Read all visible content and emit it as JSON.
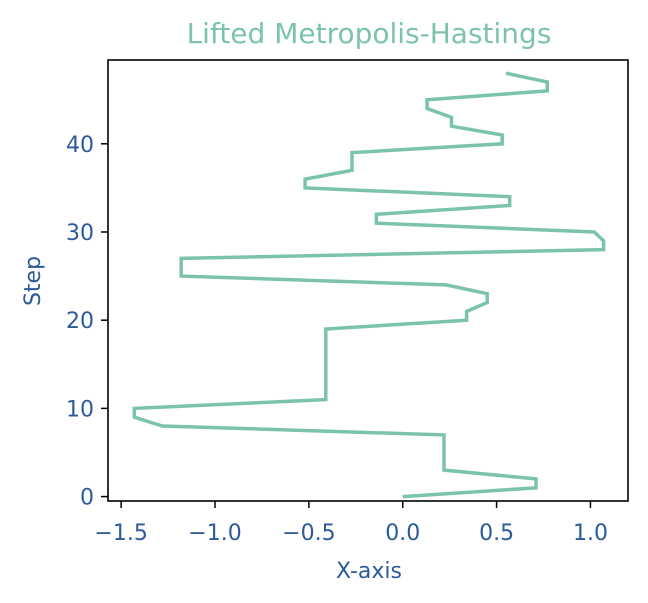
{
  "colors": {
    "series": "#7cc4a8",
    "text": "#2d5a99",
    "axes": "#000000",
    "background": "#ffffff"
  },
  "chart_data": {
    "type": "line",
    "title": "Lifted Metropolis-Hastings",
    "xlabel": "X-axis",
    "ylabel": "Step",
    "xlim": [
      -1.57,
      1.2
    ],
    "ylim": [
      -0.5,
      49.5
    ],
    "grid": false,
    "legend": "none",
    "x_ticks": [
      -1.5,
      -1.0,
      -0.5,
      0.0,
      0.5,
      1.0
    ],
    "x_tick_labels": [
      "−1.5",
      "−1.0",
      "−0.5",
      "0.0",
      "0.5",
      "1.0"
    ],
    "y_ticks": [
      0,
      10,
      20,
      30,
      40
    ],
    "y_tick_labels": [
      "0",
      "10",
      "20",
      "30",
      "40"
    ],
    "series": [
      {
        "points": [
          [
            0.0,
            0
          ],
          [
            0.71,
            1
          ],
          [
            0.71,
            2
          ],
          [
            0.22,
            3
          ],
          [
            0.22,
            4
          ],
          [
            0.22,
            5
          ],
          [
            0.22,
            6
          ],
          [
            0.22,
            7
          ],
          [
            -1.28,
            8
          ],
          [
            -1.43,
            9
          ],
          [
            -1.43,
            10
          ],
          [
            -0.41,
            11
          ],
          [
            -0.41,
            12
          ],
          [
            -0.41,
            13
          ],
          [
            -0.41,
            14
          ],
          [
            -0.41,
            15
          ],
          [
            -0.41,
            16
          ],
          [
            -0.41,
            17
          ],
          [
            -0.41,
            18
          ],
          [
            -0.41,
            19
          ],
          [
            0.34,
            20
          ],
          [
            0.34,
            21
          ],
          [
            0.45,
            22
          ],
          [
            0.45,
            23
          ],
          [
            0.23,
            24
          ],
          [
            -1.18,
            25
          ],
          [
            -1.18,
            26
          ],
          [
            -1.18,
            27
          ],
          [
            1.07,
            28
          ],
          [
            1.07,
            29
          ],
          [
            1.02,
            30
          ],
          [
            -0.14,
            31
          ],
          [
            -0.14,
            32
          ],
          [
            0.57,
            33
          ],
          [
            0.57,
            34
          ],
          [
            -0.52,
            35
          ],
          [
            -0.52,
            36
          ],
          [
            -0.27,
            37
          ],
          [
            -0.27,
            38
          ],
          [
            -0.27,
            39
          ],
          [
            0.53,
            40
          ],
          [
            0.53,
            41
          ],
          [
            0.26,
            42
          ],
          [
            0.26,
            43
          ],
          [
            0.13,
            44
          ],
          [
            0.13,
            45
          ],
          [
            0.77,
            46
          ],
          [
            0.77,
            47
          ],
          [
            0.55,
            48
          ]
        ]
      }
    ]
  }
}
